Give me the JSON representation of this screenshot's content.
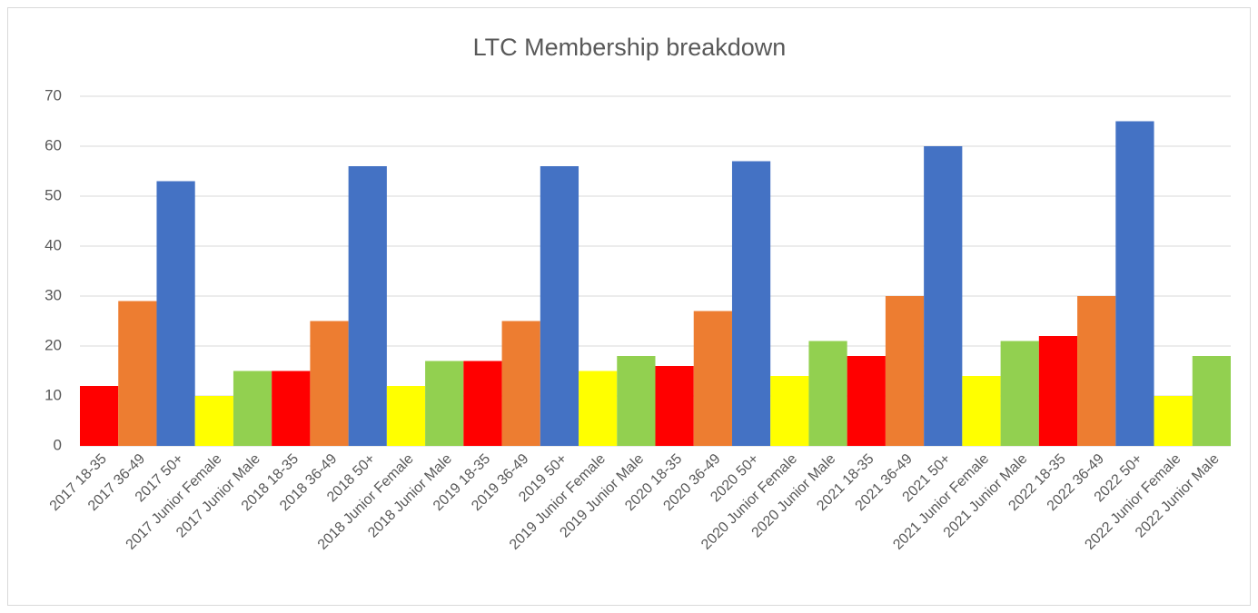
{
  "chart_data": {
    "type": "bar",
    "title": "LTC Membership breakdown",
    "categories": [
      "2017 18-35",
      "2017 36-49",
      "2017 50+",
      "2017 Junior Female",
      "2017 Junior Male",
      "2018 18-35",
      "2018 36-49",
      "2018 50+",
      "2018 Junior Female",
      "2018 Junior Male",
      "2019 18-35",
      "2019 36-49",
      "2019 50+",
      "2019 Junior Female",
      "2019 Junior Male",
      "2020 18-35",
      "2020 36-49",
      "2020 50+",
      "2020 Junior Female",
      "2020 Junior Male",
      "2021 18-35",
      "2021 36-49",
      "2021 50+",
      "2021 Junior Female",
      "2021 Junior Male",
      "2022 18-35",
      "2022 36-49",
      "2022 50+",
      "2022 Junior Female",
      "2022 Junior Male"
    ],
    "values": [
      12,
      29,
      53,
      10,
      15,
      15,
      25,
      56,
      12,
      17,
      17,
      25,
      56,
      15,
      18,
      16,
      27,
      57,
      14,
      21,
      18,
      30,
      60,
      14,
      21,
      22,
      30,
      65,
      10,
      18
    ],
    "colors": [
      "#ff0000",
      "#ed7d31",
      "#4472c4",
      "#ffff00",
      "#92d050",
      "#ff0000",
      "#ed7d31",
      "#4472c4",
      "#ffff00",
      "#92d050",
      "#ff0000",
      "#ed7d31",
      "#4472c4",
      "#ffff00",
      "#92d050",
      "#ff0000",
      "#ed7d31",
      "#4472c4",
      "#ffff00",
      "#92d050",
      "#ff0000",
      "#ed7d31",
      "#4472c4",
      "#ffff00",
      "#92d050",
      "#ff0000",
      "#ed7d31",
      "#4472c4",
      "#ffff00",
      "#92d050"
    ],
    "ylim": [
      0,
      70
    ],
    "yticks": [
      0,
      10,
      20,
      30,
      40,
      50,
      60,
      70
    ],
    "grid": true
  }
}
